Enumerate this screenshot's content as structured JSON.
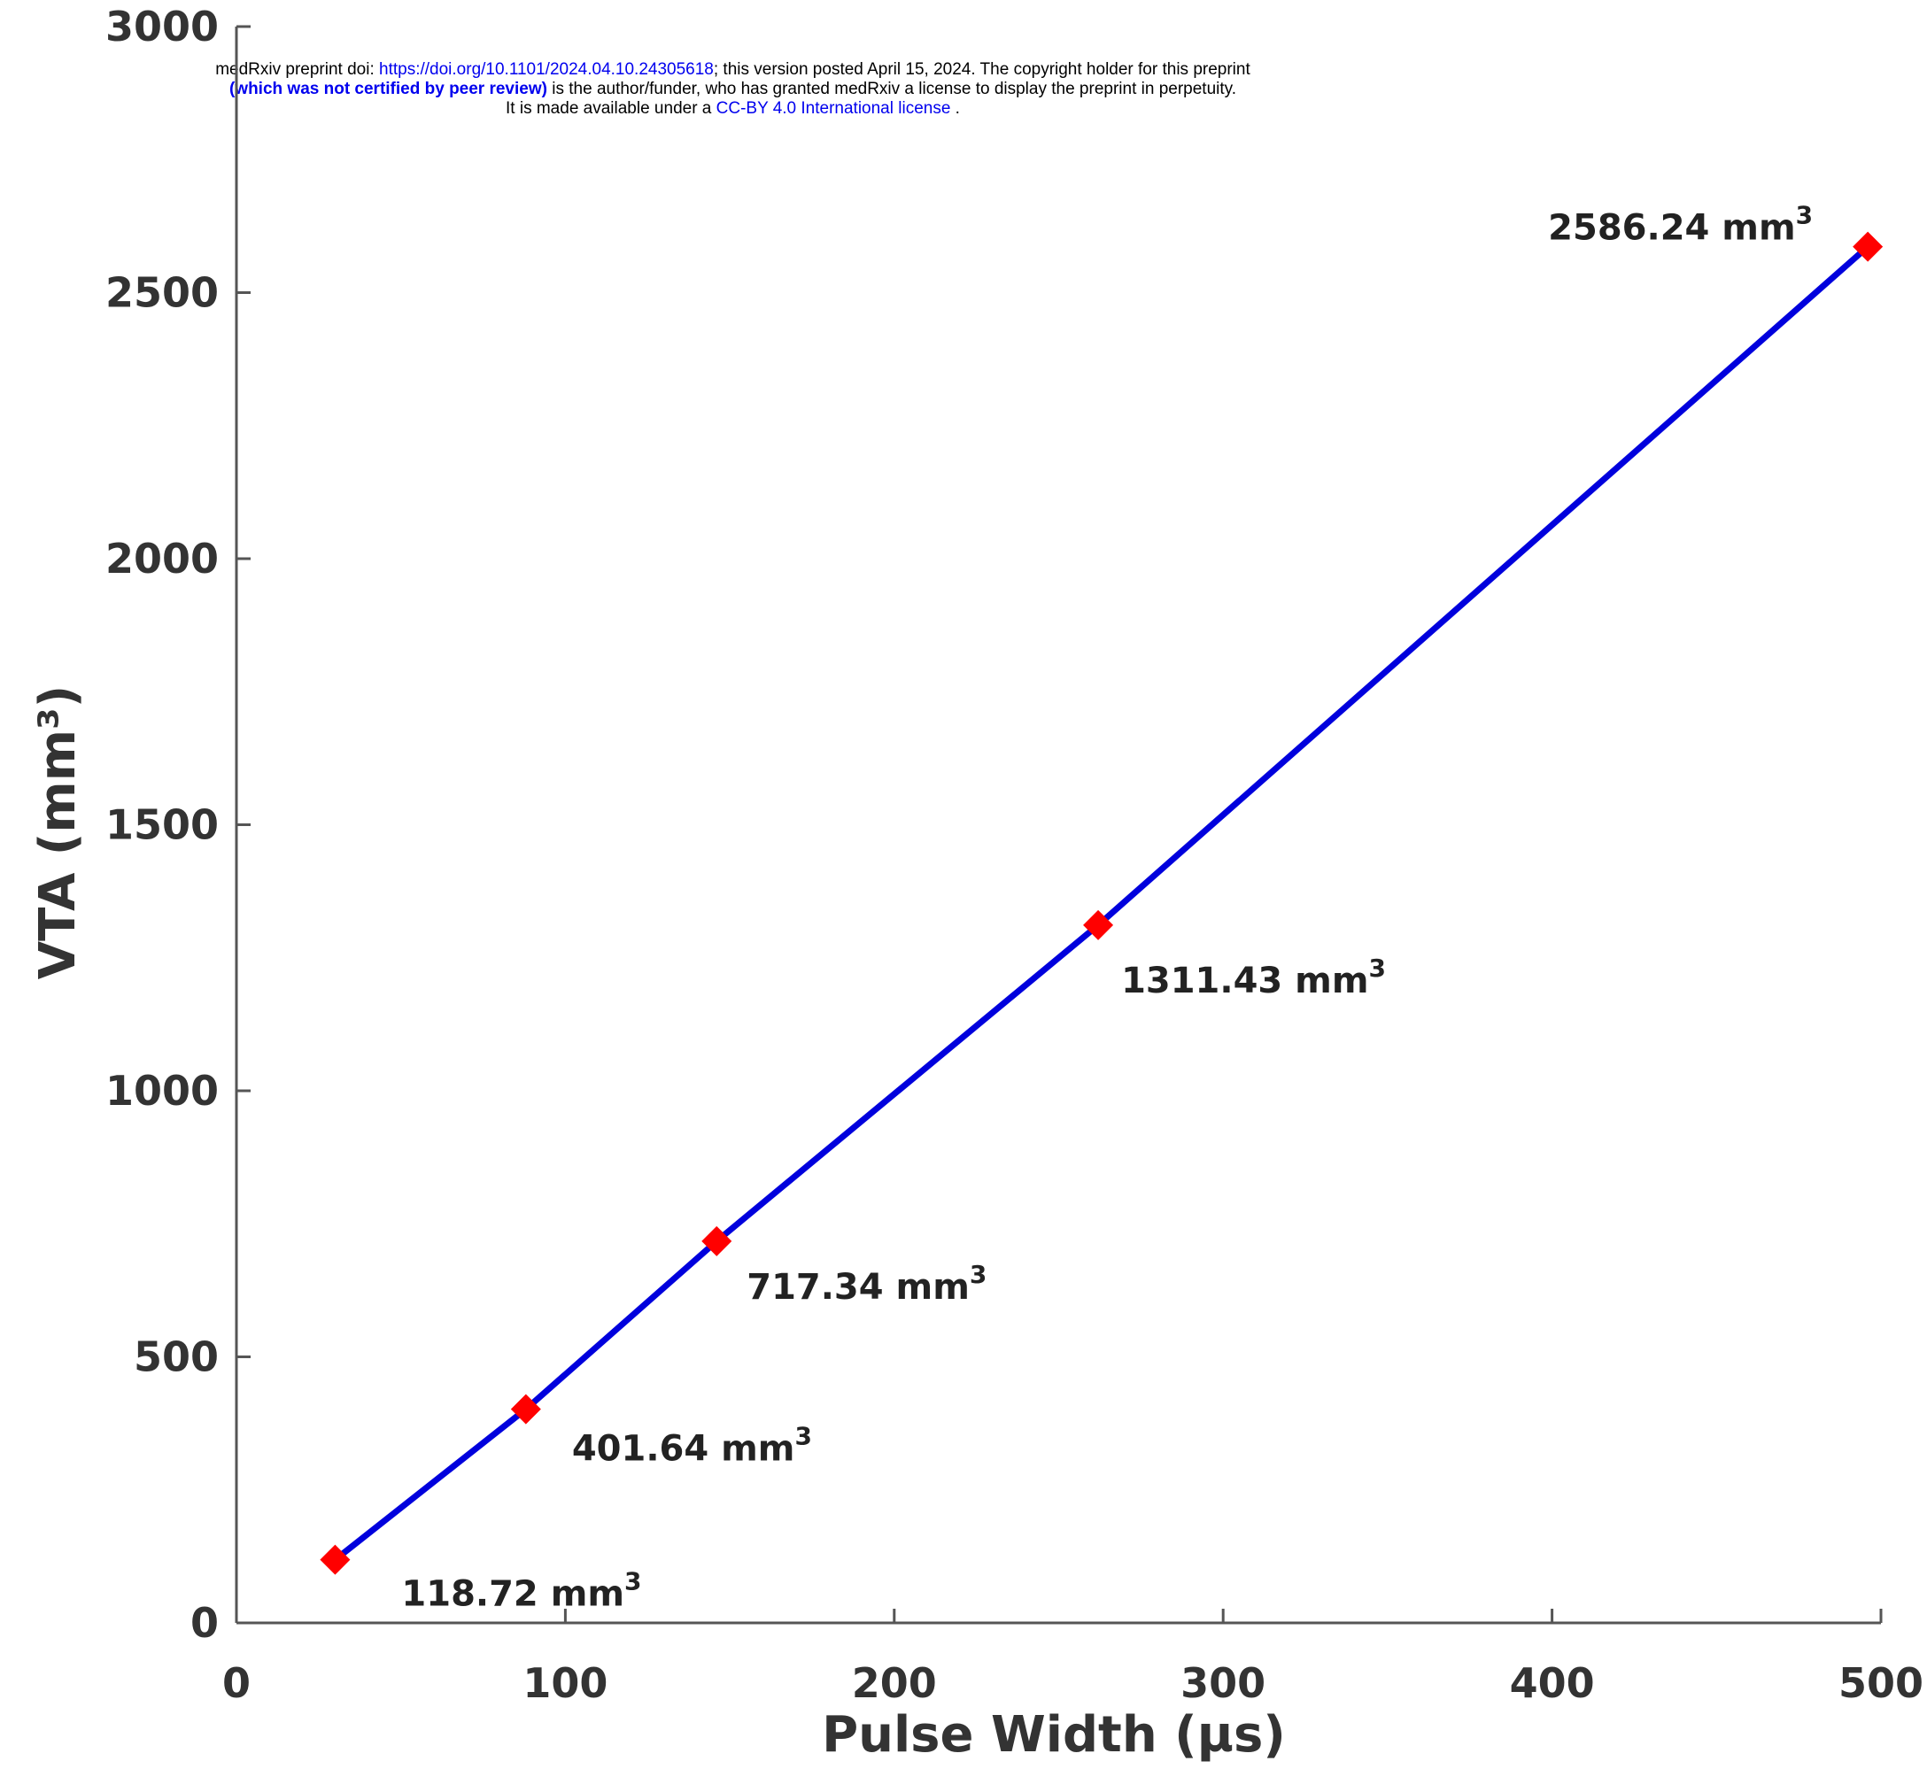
{
  "banner": {
    "line1_prefix": "medRxiv preprint doi: ",
    "line1_link": "https://doi.org/10.1101/2024.04.10.24305618",
    "line1_suffix": "; this version posted April 15, 2024. The copyright holder for this preprint",
    "line2_bold": "(which was not certified by peer review)",
    "line2_suffix": " is the author/funder, who has granted medRxiv a license to display the preprint in perpetuity.",
    "line3_prefix": "It is made available under a ",
    "line3_link": "CC-BY 4.0 International license",
    "line3_suffix": " ."
  },
  "colors": {
    "line": "#0000dd",
    "marker": "#ff0000",
    "axis": "#555555",
    "link": "#0000ee"
  },
  "chart_data": {
    "type": "line",
    "title": "",
    "xlabel": "Pulse Width (µs)",
    "ylabel": "VTA (mm³)",
    "xlim": [
      0,
      500
    ],
    "ylim": [
      0,
      3000
    ],
    "xticks": [
      0,
      100,
      200,
      300,
      400,
      500
    ],
    "yticks": [
      0,
      500,
      1000,
      1500,
      2000,
      2500,
      3000
    ],
    "grid": false,
    "legend": "none",
    "series": [
      {
        "marker": "diamond",
        "x": [
          30,
          88,
          146,
          262,
          496
        ],
        "y": [
          118.72,
          401.64,
          717.34,
          1311.43,
          2586.24
        ],
        "labels": [
          "118.72 mm",
          "401.64 mm",
          "717.34 mm",
          "1311.43 mm",
          "2586.24 mm"
        ],
        "label_superscript": "3"
      }
    ]
  }
}
